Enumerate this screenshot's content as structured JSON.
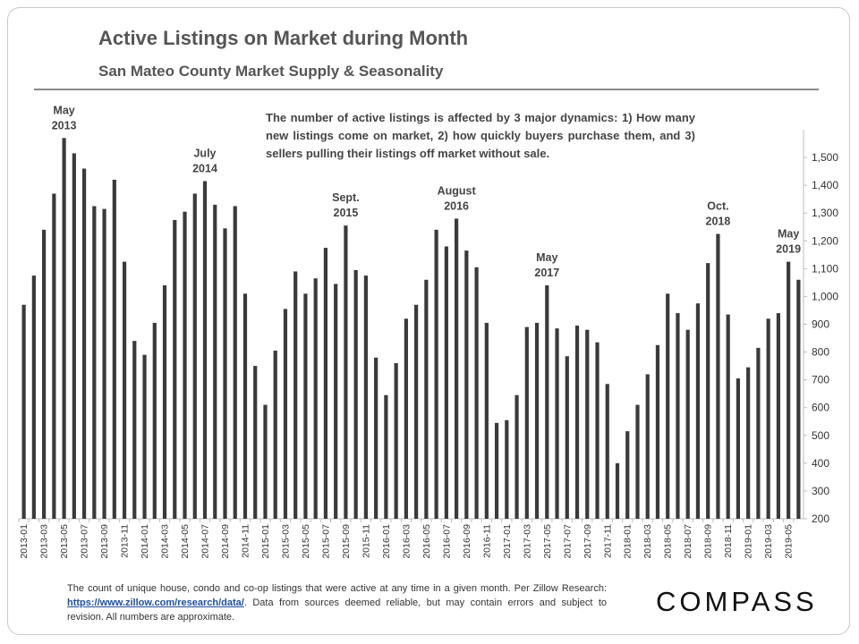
{
  "chart_data": {
    "type": "bar",
    "title": "Active Listings on Market during Month",
    "subtitle": "San Mateo County Market Supply & Seasonality",
    "ylim": [
      200,
      1600
    ],
    "yticks": [
      200,
      300,
      400,
      500,
      600,
      700,
      800,
      900,
      1000,
      1100,
      1200,
      1300,
      1400,
      1500
    ],
    "ytick_labels": [
      "200",
      "300",
      "400",
      "500",
      "600",
      "700",
      "800",
      "900",
      "1,000",
      "1,100",
      "1,200",
      "1,300",
      "1,400",
      "1,500"
    ],
    "color": "#3a3a3a",
    "grid": false,
    "categories": [
      "2013-01",
      "2013-02",
      "2013-03",
      "2013-04",
      "2013-05",
      "2013-06",
      "2013-07",
      "2013-08",
      "2013-09",
      "2013-10",
      "2013-11",
      "2013-12",
      "2014-01",
      "2014-02",
      "2014-03",
      "2014-04",
      "2014-05",
      "2014-06",
      "2014-07",
      "2014-08",
      "2014-09",
      "2014-10",
      "2014-11",
      "2014-12",
      "2015-01",
      "2015-02",
      "2015-03",
      "2015-04",
      "2015-05",
      "2015-06",
      "2015-07",
      "2015-08",
      "2015-09",
      "2015-10",
      "2015-11",
      "2015-12",
      "2016-01",
      "2016-02",
      "2016-03",
      "2016-04",
      "2016-05",
      "2016-06",
      "2016-07",
      "2016-08",
      "2016-09",
      "2016-10",
      "2016-11",
      "2016-12",
      "2017-01",
      "2017-02",
      "2017-03",
      "2017-04",
      "2017-05",
      "2017-06",
      "2017-07",
      "2017-08",
      "2017-09",
      "2017-10",
      "2017-11",
      "2017-12",
      "2018-01",
      "2018-02",
      "2018-03",
      "2018-04",
      "2018-05",
      "2018-06",
      "2018-07",
      "2018-08",
      "2018-09",
      "2018-10",
      "2018-11",
      "2018-12",
      "2019-01",
      "2019-02",
      "2019-03",
      "2019-04",
      "2019-05",
      "2019-06"
    ],
    "values": [
      970,
      1075,
      1240,
      1370,
      1570,
      1515,
      1460,
      1325,
      1315,
      1420,
      1125,
      840,
      790,
      905,
      1040,
      1275,
      1305,
      1370,
      1415,
      1330,
      1245,
      1325,
      1010,
      750,
      610,
      805,
      955,
      1090,
      1010,
      1065,
      1175,
      1045,
      1255,
      1095,
      1075,
      780,
      645,
      760,
      920,
      970,
      1060,
      1240,
      1180,
      1280,
      1165,
      1105,
      905,
      545,
      555,
      645,
      890,
      905,
      1040,
      885,
      785,
      895,
      880,
      835,
      685,
      400,
      515,
      610,
      720,
      825,
      1010,
      940,
      880,
      975,
      1120,
      1225,
      935,
      705,
      745,
      815,
      920,
      940,
      1125,
      1060
    ],
    "annotations": [
      {
        "index": 4,
        "lines": [
          "May",
          "2013"
        ]
      },
      {
        "index": 18,
        "lines": [
          "July",
          "2014"
        ]
      },
      {
        "index": 32,
        "lines": [
          "Sept.",
          "2015"
        ]
      },
      {
        "index": 43,
        "lines": [
          "August",
          "2016"
        ]
      },
      {
        "index": 52,
        "lines": [
          "May",
          "2017"
        ]
      },
      {
        "index": 69,
        "lines": [
          "Oct.",
          "2018"
        ]
      },
      {
        "index": 76,
        "lines": [
          "May",
          "2019"
        ]
      }
    ]
  },
  "callout": "The number of active listings is affected by 3 major dynamics: 1) How many new listings come on market, 2) how quickly buyers purchase them, and 3) sellers pulling their listings off market without sale.",
  "footnote": {
    "text_before": "The count of unique house, condo and co-op listings that were active at any time in a given month. Per Zillow Research: ",
    "link": "https://www.zillow.com/research/data/",
    "text_after": ". Data from sources deemed reliable, but may contain errors and subject to revision. All numbers are approximate."
  },
  "logo": "COMPASS"
}
